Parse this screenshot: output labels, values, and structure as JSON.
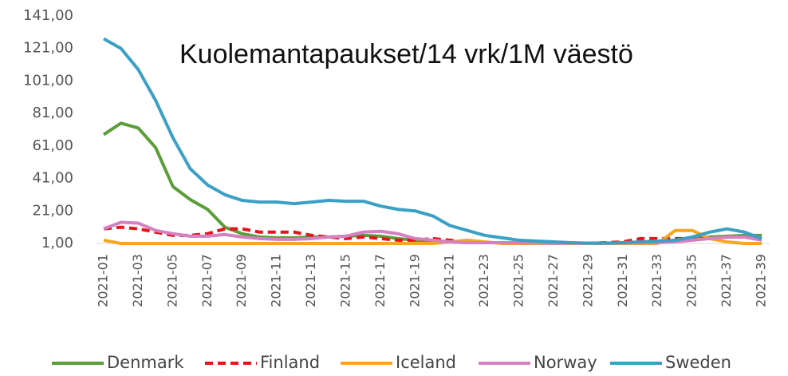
{
  "chart_data": {
    "type": "line",
    "title": "Kuolemantapaukset/14 vrk/1M väestö",
    "categories": [
      "2021-01",
      null,
      "2021-03",
      null,
      "2021-05",
      null,
      "2021-07",
      null,
      "2021-09",
      null,
      "2021-11",
      null,
      "2021-13",
      null,
      "2021-15",
      null,
      "2021-17",
      null,
      "2021-19",
      null,
      "2021-21",
      null,
      "2021-23",
      null,
      "2021-25",
      null,
      "2021-27",
      null,
      "2021-29",
      null,
      "2021-31",
      null,
      "2021-33",
      null,
      "2021-35",
      null,
      "2021-37",
      null,
      "2021-39"
    ],
    "ylim": [
      1,
      141
    ],
    "yticks": [
      {
        "value": 1,
        "label": "1,00"
      },
      {
        "value": 21,
        "label": "21,00"
      },
      {
        "value": 41,
        "label": "41,00"
      },
      {
        "value": 61,
        "label": "61,00"
      },
      {
        "value": 81,
        "label": "81,00"
      },
      {
        "value": 101,
        "label": "101,00"
      },
      {
        "value": 121,
        "label": "121,00"
      },
      {
        "value": 141,
        "label": "141,00"
      }
    ],
    "legend": "bottom",
    "series": [
      {
        "name": "Denmark",
        "color": "#5a9e3a",
        "dashed": false,
        "values": [
          68,
          75,
          72,
          60,
          36,
          28,
          22,
          11,
          7,
          5,
          4.5,
          4.5,
          5,
          5,
          5.5,
          6,
          5.5,
          4,
          3,
          2.5,
          2,
          1.5,
          1.5,
          1.5,
          1.5,
          1.3,
          1.2,
          1.2,
          1.2,
          1.2,
          1.3,
          1.5,
          2,
          3,
          4,
          5,
          5.5,
          6,
          6
        ]
      },
      {
        "name": "Finland",
        "color": "#e8141b",
        "dashed": true,
        "values": [
          10,
          11,
          10,
          8,
          6,
          6,
          7,
          10,
          10,
          8,
          8,
          8,
          6,
          5,
          4,
          5,
          4,
          3,
          3,
          4,
          3,
          2,
          1.5,
          1.5,
          1.5,
          1.3,
          1.2,
          1.2,
          1.2,
          1.5,
          2,
          4,
          4,
          4,
          4,
          4,
          5,
          5,
          4
        ]
      },
      {
        "name": "Iceland",
        "color": "#f5a623",
        "dashed": false,
        "values": [
          3,
          1,
          1,
          1,
          1,
          1,
          1,
          1,
          1,
          1,
          1,
          1,
          1,
          1,
          1,
          1,
          1,
          1,
          1,
          1,
          2,
          3,
          2,
          1,
          1,
          1,
          1,
          1,
          1,
          1,
          1,
          1,
          1,
          9,
          9,
          4,
          2,
          1,
          1
        ]
      },
      {
        "name": "Norway",
        "color": "#d580c0",
        "dashed": false,
        "values": [
          10,
          14,
          13.5,
          9,
          7,
          5.5,
          5.5,
          6.5,
          5,
          4,
          3.5,
          3.5,
          4,
          5,
          5.5,
          8,
          8.5,
          7,
          4,
          3,
          2,
          1.5,
          1.5,
          1.5,
          1.5,
          1.3,
          1.2,
          1.2,
          1.2,
          1.2,
          1.3,
          1.5,
          1.5,
          2,
          3,
          4,
          5,
          5,
          3
        ]
      },
      {
        "name": "Sweden",
        "color": "#3aa0c4",
        "dashed": false,
        "values": [
          127,
          121,
          108,
          89,
          66,
          47,
          37,
          31,
          27.5,
          26.5,
          26.5,
          25.5,
          26.5,
          27.5,
          27,
          27,
          24,
          22,
          21,
          18,
          12,
          9,
          6,
          4.5,
          3,
          2.5,
          2,
          1.5,
          1.2,
          1.2,
          1.5,
          2,
          2.5,
          3,
          5,
          8,
          10,
          8,
          4
        ]
      }
    ]
  }
}
